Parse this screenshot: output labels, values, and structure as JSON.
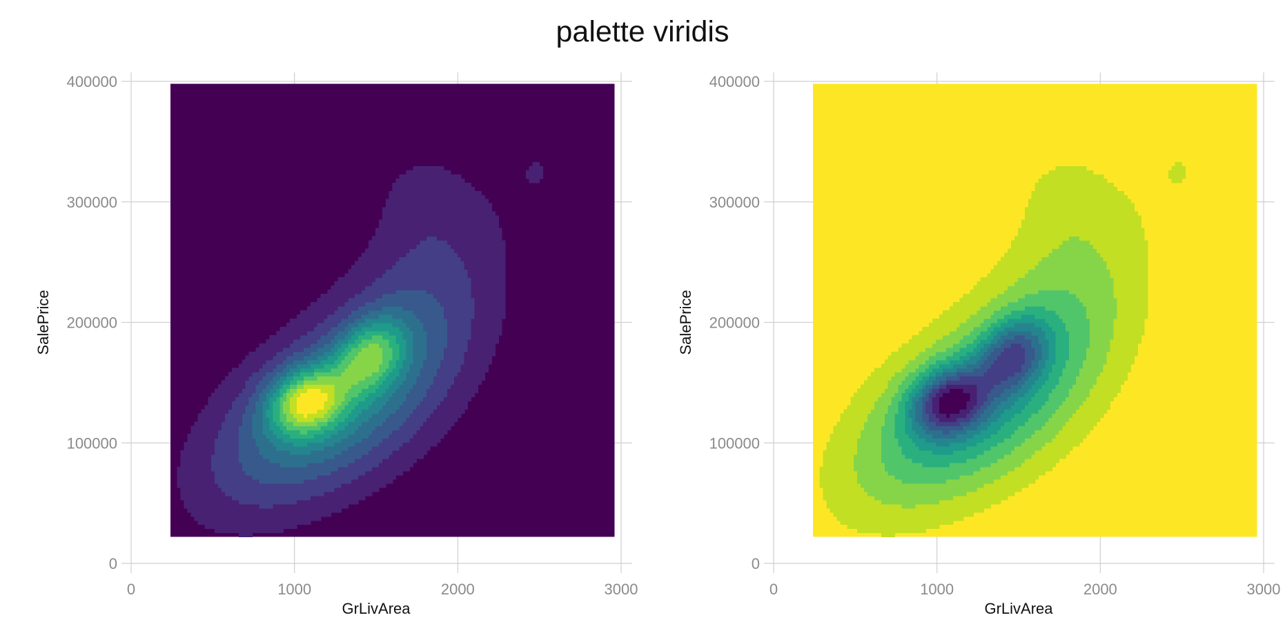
{
  "figure": {
    "title": "palette viridis"
  },
  "chart_data": [
    {
      "type": "heatmap",
      "subtype": "filled-density-contour",
      "palette": "viridis",
      "direction": "forward",
      "title": "",
      "xlabel": "GrLivArea",
      "ylabel": "SalePrice",
      "xlim": [
        0,
        3000
      ],
      "ylim": [
        0,
        400000
      ],
      "x_ticks": [
        0,
        1000,
        2000,
        3000
      ],
      "y_ticks": [
        0,
        100000,
        200000,
        300000,
        400000
      ],
      "x_tick_labels": [
        "0",
        "1000",
        "2000",
        "3000"
      ],
      "y_tick_labels": [
        "0",
        "100000",
        "200000",
        "300000",
        "400000"
      ],
      "fill_extent": {
        "x": [
          240,
          2960
        ],
        "y": [
          22000,
          398000
        ]
      },
      "grid": true,
      "legend": "none",
      "colors": [
        "#440154",
        "#482173",
        "#433e85",
        "#38598c",
        "#2d708e",
        "#25858e",
        "#1e9b8a",
        "#2ab07f",
        "#51c56a",
        "#86d549",
        "#c2df23",
        "#fde725"
      ]
    },
    {
      "type": "heatmap",
      "subtype": "filled-density-contour",
      "palette": "viridis",
      "direction": "reversed",
      "title": "",
      "xlabel": "GrLivArea",
      "ylabel": "SalePrice",
      "xlim": [
        0,
        3000
      ],
      "ylim": [
        0,
        400000
      ],
      "x_ticks": [
        0,
        1000,
        2000,
        3000
      ],
      "y_ticks": [
        0,
        100000,
        200000,
        300000,
        400000
      ],
      "x_tick_labels": [
        "0",
        "1000",
        "2000",
        "3000"
      ],
      "y_tick_labels": [
        "0",
        "100000",
        "200000",
        "300000",
        "400000"
      ],
      "fill_extent": {
        "x": [
          240,
          2960
        ],
        "y": [
          22000,
          398000
        ]
      },
      "grid": true,
      "legend": "none",
      "colors": [
        "#fde725",
        "#c2df23",
        "#86d549",
        "#51c56a",
        "#2ab07f",
        "#1e9b8a",
        "#25858e",
        "#2d708e",
        "#38598c",
        "#433e85",
        "#482173",
        "#440154"
      ]
    }
  ]
}
